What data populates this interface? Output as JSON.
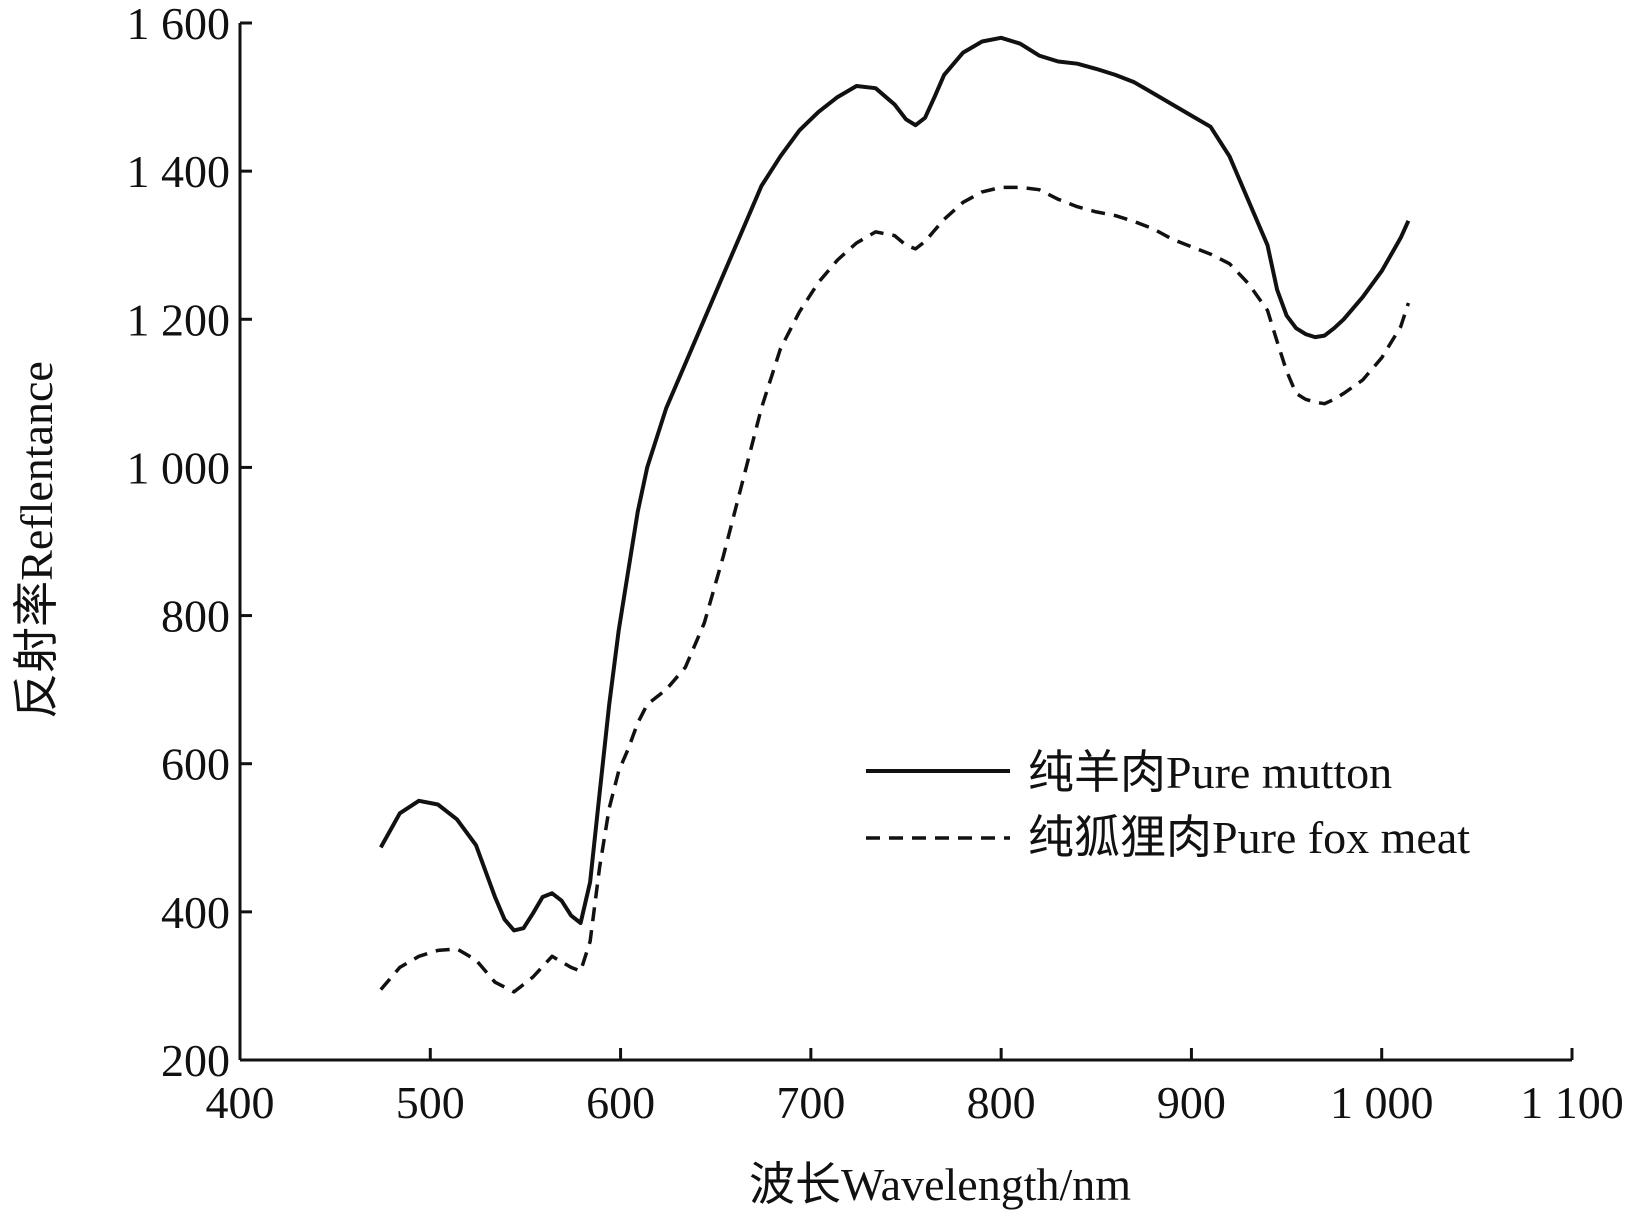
{
  "chart_data": {
    "type": "line",
    "xlabel": "波长Wavelength/nm",
    "ylabel": "反射率Reflentance",
    "xlim": [
      400,
      1100
    ],
    "ylim": [
      200,
      1600
    ],
    "xticks": [
      400,
      500,
      600,
      700,
      800,
      900,
      1000,
      1100
    ],
    "xtick_labels": [
      "400",
      "500",
      "600",
      "700",
      "800",
      "900",
      "1 000",
      "1 100"
    ],
    "yticks": [
      200,
      400,
      600,
      800,
      1000,
      1200,
      1400,
      1600
    ],
    "ytick_labels": [
      "200",
      "400",
      "600",
      "800",
      "1 000",
      "1 200",
      "1 400",
      "1 600"
    ],
    "grid": false,
    "legend_position": "right-center",
    "colors": {
      "line": "#111111",
      "axis": "#111111",
      "background": "#ffffff"
    },
    "series": [
      {
        "name": "纯羊肉Pure mutton",
        "style": "solid",
        "x": [
          474,
          484,
          494,
          504,
          514,
          524,
          534,
          539,
          544,
          549,
          554,
          559,
          564,
          569,
          574,
          579,
          584,
          589,
          594,
          599,
          604,
          609,
          614,
          619,
          624,
          634,
          644,
          654,
          664,
          674,
          684,
          694,
          704,
          714,
          724,
          734,
          744,
          750,
          755,
          760,
          765,
          770,
          780,
          790,
          800,
          810,
          820,
          830,
          840,
          850,
          860,
          870,
          880,
          890,
          900,
          910,
          920,
          930,
          940,
          945,
          950,
          955,
          960,
          965,
          970,
          975,
          980,
          990,
          1000,
          1010,
          1014
        ],
        "values": [
          487,
          533,
          550,
          545,
          525,
          490,
          420,
          390,
          375,
          378,
          398,
          420,
          425,
          415,
          395,
          385,
          440,
          560,
          680,
          780,
          860,
          940,
          1000,
          1040,
          1080,
          1140,
          1200,
          1260,
          1320,
          1380,
          1420,
          1455,
          1480,
          1500,
          1515,
          1512,
          1490,
          1470,
          1462,
          1472,
          1500,
          1530,
          1560,
          1575,
          1580,
          1572,
          1556,
          1548,
          1545,
          1538,
          1530,
          1520,
          1505,
          1490,
          1475,
          1460,
          1420,
          1360,
          1300,
          1240,
          1205,
          1188,
          1180,
          1176,
          1178,
          1188,
          1200,
          1230,
          1265,
          1310,
          1333
        ]
      },
      {
        "name": "纯狐狸肉Pure fox meat",
        "style": "dashed",
        "x": [
          474,
          484,
          494,
          504,
          514,
          524,
          534,
          544,
          554,
          564,
          574,
          579,
          584,
          589,
          594,
          599,
          604,
          609,
          614,
          619,
          624,
          634,
          644,
          654,
          664,
          674,
          684,
          694,
          704,
          714,
          724,
          734,
          744,
          750,
          755,
          760,
          765,
          770,
          780,
          790,
          800,
          810,
          820,
          830,
          840,
          850,
          860,
          870,
          880,
          890,
          900,
          910,
          920,
          930,
          940,
          945,
          950,
          955,
          960,
          965,
          970,
          975,
          980,
          990,
          1000,
          1010,
          1014
        ],
        "values": [
          295,
          325,
          340,
          348,
          350,
          335,
          305,
          292,
          312,
          340,
          325,
          320,
          360,
          460,
          540,
          590,
          620,
          655,
          680,
          690,
          700,
          730,
          790,
          880,
          980,
          1080,
          1160,
          1210,
          1250,
          1280,
          1303,
          1318,
          1313,
          1300,
          1295,
          1305,
          1320,
          1335,
          1358,
          1372,
          1378,
          1378,
          1375,
          1362,
          1352,
          1345,
          1340,
          1332,
          1322,
          1308,
          1298,
          1288,
          1275,
          1248,
          1212,
          1170,
          1130,
          1100,
          1092,
          1088,
          1086,
          1092,
          1100,
          1118,
          1148,
          1190,
          1222
        ]
      }
    ]
  }
}
